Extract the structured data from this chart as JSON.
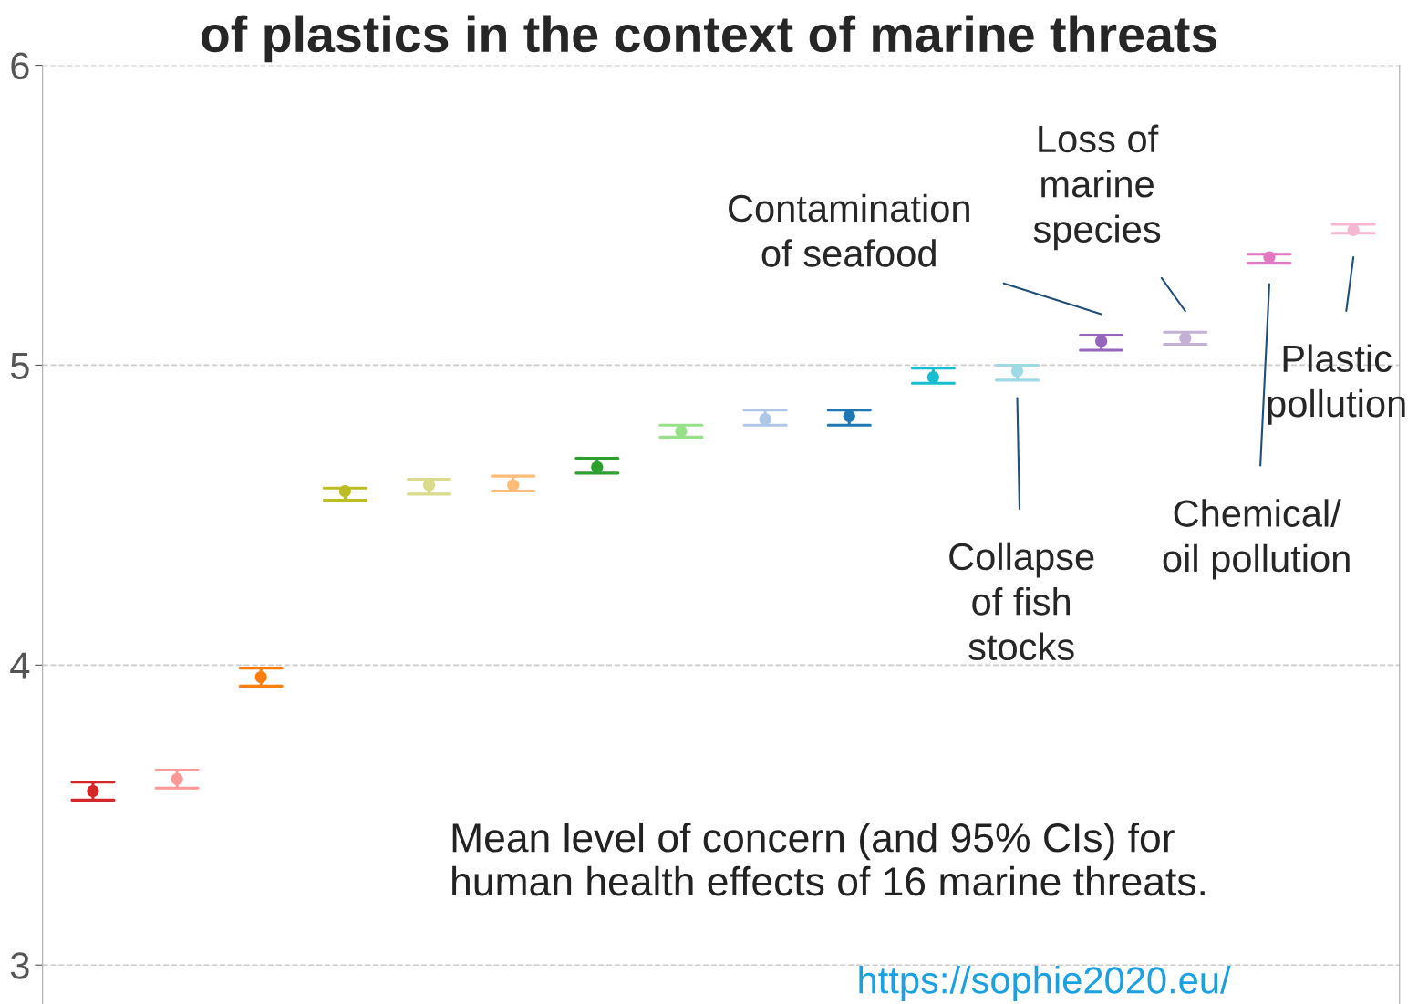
{
  "chart_data": {
    "type": "scatter",
    "title": "of plastics in the context of marine threats",
    "categories": [
      null,
      null,
      null,
      null,
      null,
      null,
      null,
      null,
      null,
      null,
      null,
      null,
      null,
      null,
      null,
      null
    ],
    "values": [
      3.58,
      3.62,
      3.96,
      4.58,
      4.6,
      4.6,
      4.66,
      4.78,
      4.82,
      4.83,
      4.96,
      4.98,
      5.08,
      5.09,
      5.36,
      5.45
    ],
    "errors": [
      [
        3.55,
        3.61
      ],
      [
        3.59,
        3.65
      ],
      [
        3.93,
        3.99
      ],
      [
        4.55,
        4.59
      ],
      [
        4.57,
        4.62
      ],
      [
        4.58,
        4.63
      ],
      [
        4.64,
        4.69
      ],
      [
        4.76,
        4.8
      ],
      [
        4.8,
        4.85
      ],
      [
        4.8,
        4.85
      ],
      [
        4.94,
        4.99
      ],
      [
        4.95,
        5.0
      ],
      [
        5.05,
        5.1
      ],
      [
        5.07,
        5.11
      ],
      [
        5.34,
        5.37
      ],
      [
        5.44,
        5.47
      ]
    ],
    "colors": [
      "#d62728",
      "#ff9896",
      "#ff7f0e",
      "#bcbd22",
      "#dbdb8d",
      "#ffbb78",
      "#2ca02c",
      "#98df8a",
      "#aec7e8",
      "#1f77b4",
      "#17becf",
      "#9edae5",
      "#9467bd",
      "#c5b0d5",
      "#e377c2",
      "#f7b6d2"
    ],
    "ylim": [
      2.87,
      6.0
    ],
    "yticks": [
      3,
      4,
      5,
      6
    ],
    "grid": "y",
    "marker": "circle",
    "annotations": [
      "Contamination\nof seafood",
      "Loss of\nmarine\nspecies",
      "Plastic\npollution",
      "Chemical/\noil pollution",
      "Collapse\nof fish\nstocks",
      "Mean level of concern (and 95% CIs) for\nhuman health effects of 16 marine threats.",
      "https://sophie2020.eu/"
    ]
  }
}
